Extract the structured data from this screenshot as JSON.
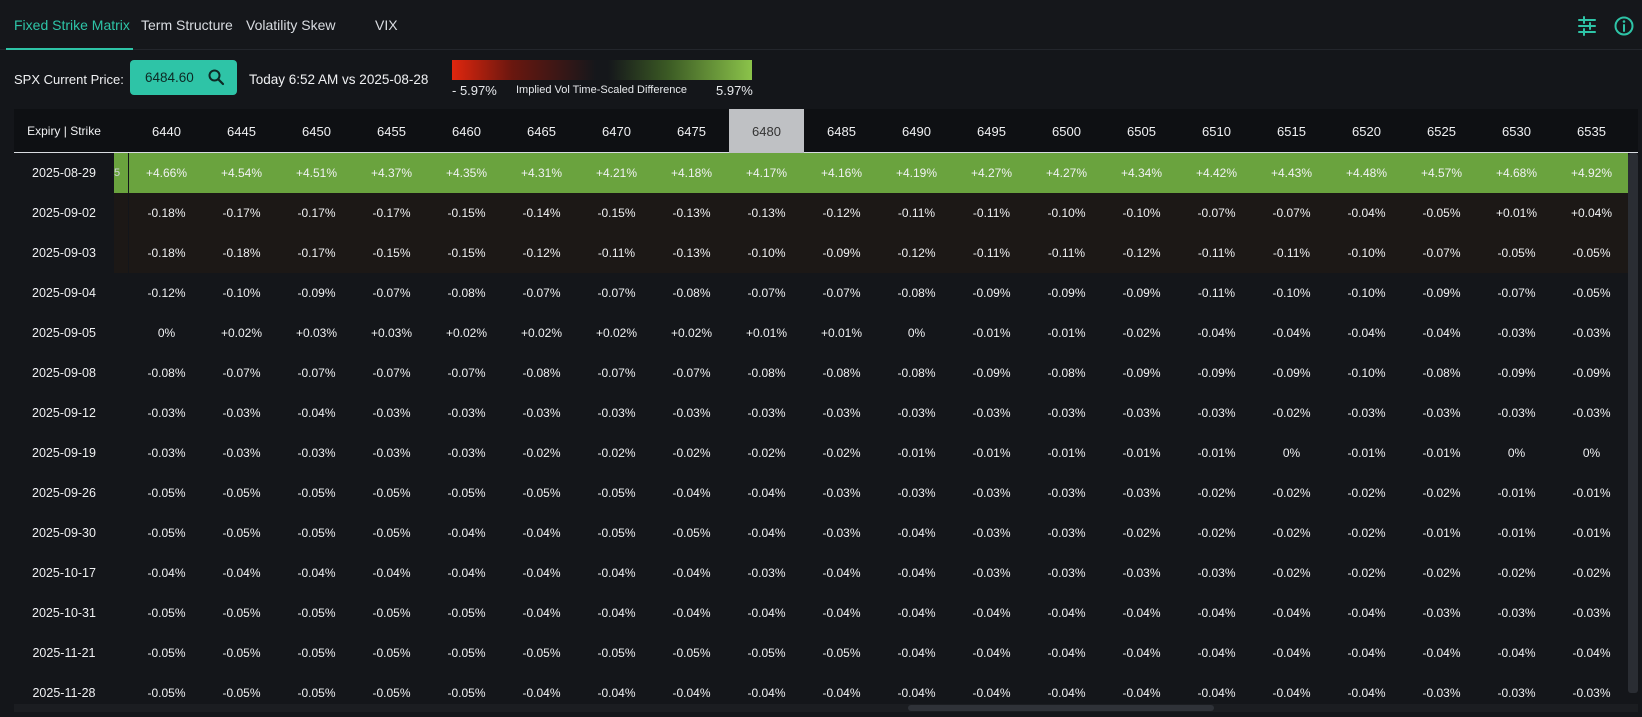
{
  "tabs": [
    {
      "label": "Fixed Strike Matrix",
      "active": true
    },
    {
      "label": "Term Structure",
      "active": false
    },
    {
      "label": "Volatility Skew",
      "active": false
    },
    {
      "label": "VIX",
      "active": false
    }
  ],
  "toolbar_icons": [
    "sliders-icon",
    "info-icon"
  ],
  "controls": {
    "spx_label": "SPX Current Price:",
    "spx_price": "6484.60",
    "comparison": "Today 6:52 AM vs 2025-08-28"
  },
  "legend": {
    "min": "- 5.97%",
    "title": "Implied Vol Time-Scaled Difference",
    "max": "5.97%",
    "colors": {
      "negative": "#e0260e",
      "neutral": "#15171b",
      "positive": "#8bc34a"
    }
  },
  "colors": {
    "accent": "#2ec4a7",
    "background": "#14161a",
    "current_strike": "#bfc1c4",
    "positive_row": "#6aa33e"
  },
  "matrix": {
    "corner_label": "Expiry | Strike",
    "current_strike": "6480",
    "strikes": [
      "6440",
      "6445",
      "6450",
      "6455",
      "6460",
      "6465",
      "6470",
      "6475",
      "6480",
      "6485",
      "6490",
      "6495",
      "6500",
      "6505",
      "6510",
      "6515",
      "6520",
      "6525",
      "6530",
      "6535"
    ],
    "rows": [
      {
        "expiry": "2025-08-29",
        "stub": "5",
        "values": [
          "+4.66%",
          "+4.54%",
          "+4.51%",
          "+4.37%",
          "+4.35%",
          "+4.31%",
          "+4.21%",
          "+4.18%",
          "+4.17%",
          "+4.16%",
          "+4.19%",
          "+4.27%",
          "+4.27%",
          "+4.34%",
          "+4.42%",
          "+4.43%",
          "+4.48%",
          "+4.57%",
          "+4.68%",
          "+4.92%"
        ]
      },
      {
        "expiry": "2025-09-02",
        "stub": "",
        "values": [
          "-0.18%",
          "-0.17%",
          "-0.17%",
          "-0.17%",
          "-0.15%",
          "-0.14%",
          "-0.15%",
          "-0.13%",
          "-0.13%",
          "-0.12%",
          "-0.11%",
          "-0.11%",
          "-0.10%",
          "-0.10%",
          "-0.07%",
          "-0.07%",
          "-0.04%",
          "-0.05%",
          "+0.01%",
          "+0.04%"
        ]
      },
      {
        "expiry": "2025-09-03",
        "stub": "",
        "values": [
          "-0.18%",
          "-0.18%",
          "-0.17%",
          "-0.15%",
          "-0.15%",
          "-0.12%",
          "-0.11%",
          "-0.13%",
          "-0.10%",
          "-0.09%",
          "-0.12%",
          "-0.11%",
          "-0.11%",
          "-0.12%",
          "-0.11%",
          "-0.11%",
          "-0.10%",
          "-0.07%",
          "-0.05%",
          "-0.05%"
        ]
      },
      {
        "expiry": "2025-09-04",
        "stub": "",
        "values": [
          "-0.12%",
          "-0.10%",
          "-0.09%",
          "-0.07%",
          "-0.08%",
          "-0.07%",
          "-0.07%",
          "-0.08%",
          "-0.07%",
          "-0.07%",
          "-0.08%",
          "-0.09%",
          "-0.09%",
          "-0.09%",
          "-0.11%",
          "-0.10%",
          "-0.10%",
          "-0.09%",
          "-0.07%",
          "-0.05%"
        ]
      },
      {
        "expiry": "2025-09-05",
        "stub": "",
        "values": [
          "0%",
          "+0.02%",
          "+0.03%",
          "+0.03%",
          "+0.02%",
          "+0.02%",
          "+0.02%",
          "+0.02%",
          "+0.01%",
          "+0.01%",
          "0%",
          "-0.01%",
          "-0.01%",
          "-0.02%",
          "-0.04%",
          "-0.04%",
          "-0.04%",
          "-0.04%",
          "-0.03%",
          "-0.03%"
        ]
      },
      {
        "expiry": "2025-09-08",
        "stub": "",
        "values": [
          "-0.08%",
          "-0.07%",
          "-0.07%",
          "-0.07%",
          "-0.07%",
          "-0.08%",
          "-0.07%",
          "-0.07%",
          "-0.08%",
          "-0.08%",
          "-0.08%",
          "-0.09%",
          "-0.08%",
          "-0.09%",
          "-0.09%",
          "-0.09%",
          "-0.10%",
          "-0.08%",
          "-0.09%",
          "-0.09%"
        ]
      },
      {
        "expiry": "2025-09-12",
        "stub": "",
        "values": [
          "-0.03%",
          "-0.03%",
          "-0.04%",
          "-0.03%",
          "-0.03%",
          "-0.03%",
          "-0.03%",
          "-0.03%",
          "-0.03%",
          "-0.03%",
          "-0.03%",
          "-0.03%",
          "-0.03%",
          "-0.03%",
          "-0.03%",
          "-0.02%",
          "-0.03%",
          "-0.03%",
          "-0.03%",
          "-0.03%"
        ]
      },
      {
        "expiry": "2025-09-19",
        "stub": "",
        "values": [
          "-0.03%",
          "-0.03%",
          "-0.03%",
          "-0.03%",
          "-0.03%",
          "-0.02%",
          "-0.02%",
          "-0.02%",
          "-0.02%",
          "-0.02%",
          "-0.01%",
          "-0.01%",
          "-0.01%",
          "-0.01%",
          "-0.01%",
          "0%",
          "-0.01%",
          "-0.01%",
          "0%",
          "0%"
        ]
      },
      {
        "expiry": "2025-09-26",
        "stub": "",
        "values": [
          "-0.05%",
          "-0.05%",
          "-0.05%",
          "-0.05%",
          "-0.05%",
          "-0.05%",
          "-0.05%",
          "-0.04%",
          "-0.04%",
          "-0.03%",
          "-0.03%",
          "-0.03%",
          "-0.03%",
          "-0.03%",
          "-0.02%",
          "-0.02%",
          "-0.02%",
          "-0.02%",
          "-0.01%",
          "-0.01%"
        ]
      },
      {
        "expiry": "2025-09-30",
        "stub": "",
        "values": [
          "-0.05%",
          "-0.05%",
          "-0.05%",
          "-0.05%",
          "-0.04%",
          "-0.04%",
          "-0.05%",
          "-0.05%",
          "-0.04%",
          "-0.03%",
          "-0.04%",
          "-0.03%",
          "-0.03%",
          "-0.02%",
          "-0.02%",
          "-0.02%",
          "-0.02%",
          "-0.01%",
          "-0.01%",
          "-0.01%"
        ]
      },
      {
        "expiry": "2025-10-17",
        "stub": "",
        "values": [
          "-0.04%",
          "-0.04%",
          "-0.04%",
          "-0.04%",
          "-0.04%",
          "-0.04%",
          "-0.04%",
          "-0.04%",
          "-0.03%",
          "-0.04%",
          "-0.04%",
          "-0.03%",
          "-0.03%",
          "-0.03%",
          "-0.03%",
          "-0.02%",
          "-0.02%",
          "-0.02%",
          "-0.02%",
          "-0.02%"
        ]
      },
      {
        "expiry": "2025-10-31",
        "stub": "",
        "values": [
          "-0.05%",
          "-0.05%",
          "-0.05%",
          "-0.05%",
          "-0.05%",
          "-0.04%",
          "-0.04%",
          "-0.04%",
          "-0.04%",
          "-0.04%",
          "-0.04%",
          "-0.04%",
          "-0.04%",
          "-0.04%",
          "-0.04%",
          "-0.04%",
          "-0.04%",
          "-0.03%",
          "-0.03%",
          "-0.03%"
        ]
      },
      {
        "expiry": "2025-11-21",
        "stub": "",
        "values": [
          "-0.05%",
          "-0.05%",
          "-0.05%",
          "-0.05%",
          "-0.05%",
          "-0.05%",
          "-0.05%",
          "-0.05%",
          "-0.05%",
          "-0.05%",
          "-0.04%",
          "-0.04%",
          "-0.04%",
          "-0.04%",
          "-0.04%",
          "-0.04%",
          "-0.04%",
          "-0.04%",
          "-0.04%",
          "-0.04%"
        ]
      },
      {
        "expiry": "2025-11-28",
        "stub": "",
        "values": [
          "-0.05%",
          "-0.05%",
          "-0.05%",
          "-0.05%",
          "-0.05%",
          "-0.04%",
          "-0.04%",
          "-0.04%",
          "-0.04%",
          "-0.04%",
          "-0.04%",
          "-0.04%",
          "-0.04%",
          "-0.04%",
          "-0.04%",
          "-0.04%",
          "-0.04%",
          "-0.03%",
          "-0.03%",
          "-0.03%"
        ]
      }
    ]
  }
}
